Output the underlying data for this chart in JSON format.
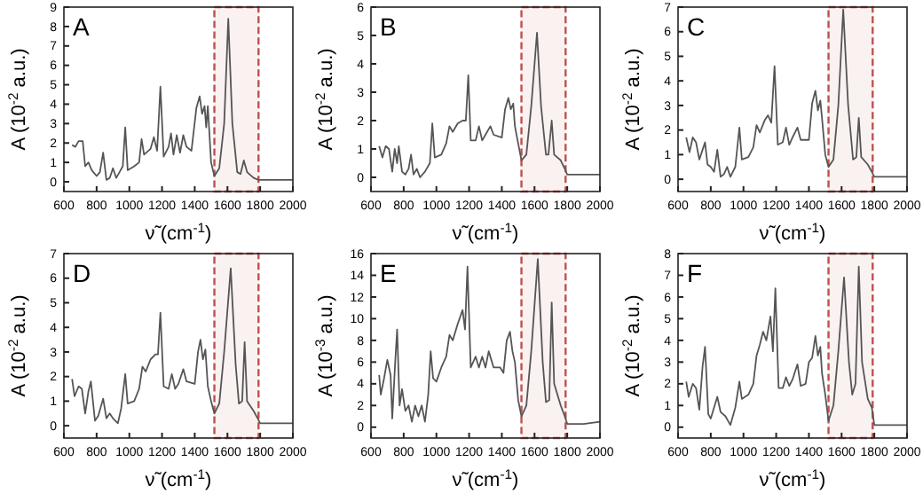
{
  "chart_data": [
    {
      "type": "line",
      "title": "A",
      "xlabel": "ν̃ (cm$^{-1}$)",
      "ylabel": "A (10$^{-2}$ a.u.)",
      "xlim": [
        600,
        2000
      ],
      "xticks": [
        600,
        800,
        1000,
        1200,
        1400,
        1600,
        1800,
        2000
      ],
      "ylim": [
        -0.5,
        9
      ],
      "yticks": [
        0,
        1,
        2,
        3,
        4,
        5,
        6,
        7,
        8,
        9
      ],
      "bands": [
        {
          "axis": "x",
          "from": 1520,
          "to": 1790,
          "color": "#c0504d"
        }
      ],
      "series": [
        {
          "color": "#555555",
          "x": [
            650,
            670,
            690,
            715,
            730,
            750,
            770,
            800,
            820,
            840,
            860,
            880,
            900,
            920,
            940,
            960,
            975,
            990,
            1030,
            1060,
            1075,
            1090,
            1130,
            1150,
            1170,
            1190,
            1210,
            1240,
            1255,
            1270,
            1290,
            1310,
            1330,
            1350,
            1380,
            1410,
            1430,
            1445,
            1460,
            1470,
            1480,
            1500,
            1520,
            1550,
            1580,
            1605,
            1630,
            1660,
            1680,
            1700,
            1720,
            1760,
            1790,
            1800,
            1900,
            2000
          ],
          "values": [
            1.9,
            1.8,
            2.1,
            2.1,
            0.8,
            1.0,
            0.6,
            0.3,
            0.5,
            1.5,
            0.1,
            0.2,
            0.7,
            0.2,
            0.5,
            0.8,
            2.8,
            0.6,
            0.8,
            1.0,
            2.2,
            1.4,
            1.7,
            2.3,
            1.6,
            4.9,
            1.3,
            1.8,
            2.5,
            1.4,
            2.4,
            1.5,
            2.4,
            1.8,
            1.6,
            3.8,
            4.4,
            3.5,
            3.9,
            2.8,
            3.9,
            1.0,
            0.3,
            0.7,
            3.0,
            8.4,
            3.0,
            0.5,
            0.4,
            1.1,
            0.5,
            0.2,
            0.1,
            0.1,
            0.1,
            0.1
          ]
        }
      ]
    },
    {
      "type": "line",
      "title": "B",
      "xlabel": "ν̃ (cm$^{-1}$)",
      "ylabel": "A (10$^{-2}$ a.u.)",
      "xlim": [
        600,
        2000
      ],
      "xticks": [
        600,
        800,
        1000,
        1200,
        1400,
        1600,
        1800,
        2000
      ],
      "ylim": [
        -0.5,
        6
      ],
      "yticks": [
        0,
        1,
        2,
        3,
        4,
        5,
        6
      ],
      "bands": [
        {
          "axis": "x",
          "from": 1520,
          "to": 1790,
          "color": "#c0504d"
        }
      ],
      "series": [
        {
          "color": "#555555",
          "x": [
            650,
            670,
            690,
            710,
            730,
            745,
            760,
            770,
            790,
            810,
            830,
            845,
            860,
            880,
            900,
            930,
            960,
            975,
            990,
            1030,
            1060,
            1080,
            1100,
            1130,
            1160,
            1180,
            1195,
            1210,
            1240,
            1260,
            1280,
            1300,
            1330,
            1350,
            1400,
            1420,
            1440,
            1455,
            1470,
            1480,
            1500,
            1520,
            1550,
            1580,
            1615,
            1640,
            1670,
            1685,
            1705,
            1720,
            1760,
            1785,
            1800,
            1900,
            2000
          ],
          "values": [
            1.1,
            0.7,
            1.1,
            1.0,
            0.2,
            1.0,
            0.5,
            1.1,
            0.2,
            0.1,
            0.3,
            0.8,
            0.1,
            0.3,
            0.0,
            0.2,
            0.5,
            1.9,
            0.7,
            0.8,
            1.2,
            1.8,
            1.6,
            1.9,
            2.0,
            2.0,
            3.6,
            1.3,
            1.3,
            1.8,
            1.3,
            1.5,
            1.8,
            1.5,
            1.4,
            2.4,
            2.8,
            2.4,
            2.6,
            1.8,
            1.2,
            0.6,
            0.8,
            2.5,
            5.1,
            2.5,
            0.8,
            0.8,
            2.0,
            0.8,
            0.6,
            0.3,
            0.1,
            0.1,
            0.1
          ]
        }
      ]
    },
    {
      "type": "line",
      "title": "C",
      "xlabel": "ν̃ (cm$^{-1}$)",
      "ylabel": "A (10$^{-2}$ a.u.)",
      "xlim": [
        600,
        2000
      ],
      "xticks": [
        600,
        800,
        1000,
        1200,
        1400,
        1600,
        1800,
        2000
      ],
      "ylim": [
        -0.5,
        7
      ],
      "yticks": [
        0,
        1,
        2,
        3,
        4,
        5,
        6,
        7
      ],
      "bands": [
        {
          "axis": "x",
          "from": 1520,
          "to": 1790,
          "color": "#c0504d"
        }
      ],
      "series": [
        {
          "color": "#555555",
          "x": [
            650,
            670,
            690,
            710,
            730,
            750,
            765,
            780,
            800,
            820,
            840,
            860,
            880,
            900,
            920,
            950,
            975,
            990,
            1030,
            1060,
            1080,
            1100,
            1130,
            1150,
            1170,
            1190,
            1210,
            1240,
            1260,
            1280,
            1300,
            1330,
            1350,
            1400,
            1420,
            1440,
            1455,
            1470,
            1480,
            1500,
            1520,
            1550,
            1580,
            1610,
            1640,
            1670,
            1690,
            1705,
            1720,
            1760,
            1785,
            1800,
            1900,
            2000
          ],
          "values": [
            1.7,
            1.1,
            1.7,
            1.5,
            0.8,
            1.2,
            1.5,
            0.6,
            0.5,
            0.3,
            1.2,
            0.1,
            0.2,
            0.5,
            0.1,
            0.5,
            2.1,
            0.8,
            0.9,
            1.3,
            2.2,
            1.9,
            2.4,
            2.6,
            2.3,
            4.6,
            1.4,
            1.5,
            2.1,
            1.4,
            1.7,
            2.1,
            1.6,
            1.6,
            3.1,
            3.6,
            2.8,
            3.2,
            2.5,
            1.0,
            0.5,
            0.8,
            3.0,
            6.9,
            3.0,
            0.8,
            0.9,
            2.5,
            0.9,
            0.6,
            0.3,
            0.1,
            0.1,
            0.1
          ]
        }
      ]
    },
    {
      "type": "line",
      "title": "D",
      "xlabel": "ν̃ (cm$^{-1}$)",
      "ylabel": "A (10$^{-2}$ a.u.)",
      "xlim": [
        600,
        2000
      ],
      "xticks": [
        600,
        800,
        1000,
        1200,
        1400,
        1600,
        1800,
        2000
      ],
      "ylim": [
        -0.5,
        7
      ],
      "yticks": [
        0,
        1,
        2,
        3,
        4,
        5,
        6,
        7
      ],
      "bands": [
        {
          "axis": "x",
          "from": 1520,
          "to": 1790,
          "color": "#c0504d"
        }
      ],
      "series": [
        {
          "color": "#555555",
          "x": [
            650,
            665,
            690,
            710,
            730,
            750,
            765,
            790,
            810,
            840,
            860,
            880,
            900,
            930,
            950,
            975,
            990,
            1030,
            1060,
            1080,
            1100,
            1130,
            1160,
            1175,
            1190,
            1210,
            1240,
            1260,
            1280,
            1300,
            1330,
            1350,
            1400,
            1420,
            1435,
            1450,
            1465,
            1480,
            1500,
            1520,
            1550,
            1580,
            1620,
            1650,
            1670,
            1690,
            1705,
            1720,
            1760,
            1785,
            1800,
            1900,
            2000
          ],
          "values": [
            1.9,
            1.2,
            1.6,
            1.5,
            0.5,
            1.4,
            1.8,
            0.2,
            0.4,
            1.1,
            0.3,
            0.5,
            0.3,
            0.1,
            0.7,
            2.1,
            0.9,
            1.0,
            1.5,
            2.4,
            2.2,
            2.7,
            2.9,
            2.9,
            4.6,
            1.6,
            1.5,
            2.1,
            1.5,
            1.7,
            2.3,
            1.8,
            1.7,
            3.0,
            3.5,
            2.7,
            3.1,
            1.6,
            1.0,
            0.5,
            0.9,
            3.0,
            6.4,
            2.5,
            0.9,
            1.0,
            3.4,
            1.0,
            0.6,
            0.3,
            0.1,
            0.1,
            0.1
          ]
        }
      ]
    },
    {
      "type": "line",
      "title": "E",
      "xlabel": "ν̃ (cm$^{-1}$)",
      "ylabel": "A (10$^{-3}$ a.u.)",
      "xlim": [
        600,
        2000
      ],
      "xticks": [
        600,
        800,
        1000,
        1200,
        1400,
        1600,
        1800,
        2000
      ],
      "ylim": [
        -1,
        16
      ],
      "yticks": [
        0,
        2,
        4,
        6,
        8,
        10,
        12,
        14,
        16
      ],
      "bands": [
        {
          "axis": "x",
          "from": 1520,
          "to": 1790,
          "color": "#c0504d"
        }
      ],
      "series": [
        {
          "color": "#555555",
          "x": [
            650,
            660,
            680,
            700,
            720,
            730,
            750,
            760,
            775,
            790,
            810,
            830,
            850,
            870,
            890,
            910,
            930,
            950,
            965,
            980,
            1000,
            1030,
            1060,
            1080,
            1100,
            1130,
            1160,
            1175,
            1190,
            1210,
            1240,
            1260,
            1280,
            1300,
            1320,
            1350,
            1390,
            1410,
            1430,
            1450,
            1465,
            1480,
            1500,
            1520,
            1550,
            1580,
            1620,
            1650,
            1670,
            1690,
            1705,
            1720,
            1760,
            1785,
            1800,
            1900,
            2000
          ],
          "values": [
            4.8,
            3.0,
            4.5,
            6.2,
            4.8,
            0.8,
            6.5,
            9.0,
            2.0,
            3.5,
            1.5,
            2.0,
            0.5,
            2.0,
            1.0,
            2.0,
            0.5,
            3.0,
            7.0,
            4.5,
            4.2,
            5.5,
            6.5,
            8.5,
            8.0,
            9.5,
            10.8,
            9.0,
            14.8,
            5.5,
            6.5,
            5.5,
            6.5,
            5.5,
            7.0,
            5.5,
            5.5,
            5.0,
            8.0,
            8.8,
            7.0,
            6.0,
            2.5,
            1.0,
            2.0,
            7.0,
            15.5,
            6.0,
            2.3,
            2.5,
            11.5,
            4.0,
            2.0,
            1.0,
            0.3,
            0.3,
            0.5
          ]
        }
      ]
    },
    {
      "type": "line",
      "title": "F",
      "xlabel": "ν̃ (cm$^{-1}$)",
      "ylabel": "A (10$^{-2}$ a.u.)",
      "xlim": [
        600,
        2000
      ],
      "xticks": [
        600,
        800,
        1000,
        1200,
        1400,
        1600,
        1800,
        2000
      ],
      "ylim": [
        -0.5,
        8
      ],
      "yticks": [
        0,
        1,
        2,
        3,
        4,
        5,
        6,
        7,
        8
      ],
      "bands": [
        {
          "axis": "x",
          "from": 1520,
          "to": 1790,
          "color": "#c0504d"
        }
      ],
      "series": [
        {
          "color": "#555555",
          "x": [
            650,
            665,
            690,
            710,
            730,
            750,
            765,
            785,
            800,
            840,
            860,
            890,
            920,
            950,
            975,
            990,
            1030,
            1060,
            1080,
            1100,
            1120,
            1140,
            1165,
            1180,
            1195,
            1215,
            1240,
            1260,
            1280,
            1300,
            1330,
            1350,
            1380,
            1400,
            1420,
            1440,
            1455,
            1470,
            1480,
            1500,
            1520,
            1550,
            1580,
            1615,
            1645,
            1665,
            1685,
            1705,
            1725,
            1760,
            1785,
            1800,
            1900,
            2000
          ],
          "values": [
            2.1,
            1.4,
            2.0,
            1.8,
            0.8,
            2.8,
            3.7,
            0.6,
            0.4,
            1.4,
            0.7,
            0.5,
            0.1,
            0.9,
            2.1,
            1.3,
            1.5,
            2.0,
            3.3,
            3.8,
            4.4,
            4.0,
            5.1,
            3.5,
            6.4,
            1.8,
            1.8,
            2.3,
            1.9,
            2.2,
            2.9,
            1.9,
            2.0,
            3.0,
            3.2,
            4.2,
            3.3,
            3.7,
            2.5,
            1.5,
            0.3,
            1.0,
            3.5,
            6.9,
            3.0,
            1.5,
            2.0,
            7.4,
            3.0,
            1.3,
            0.9,
            0.1,
            0.1,
            0.1
          ]
        }
      ]
    }
  ]
}
